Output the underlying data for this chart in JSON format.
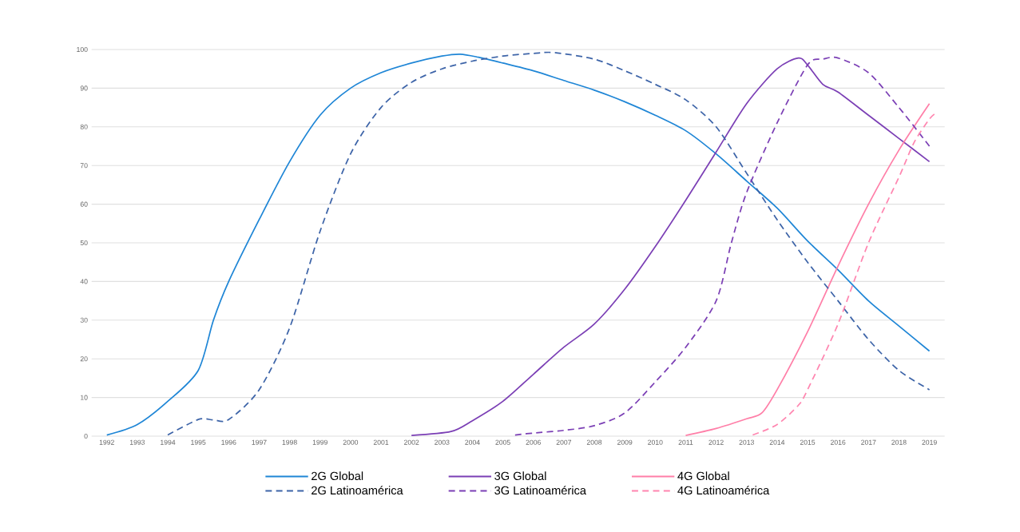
{
  "chart_data": {
    "type": "line",
    "xlim": [
      1991.5,
      2019.5
    ],
    "ylim": [
      0,
      100
    ],
    "xticks": [
      1992,
      1993,
      1994,
      1995,
      1996,
      1997,
      1998,
      1999,
      2000,
      2001,
      2002,
      2003,
      2004,
      2005,
      2006,
      2007,
      2008,
      2009,
      2010,
      2011,
      2012,
      2013,
      2014,
      2015,
      2016,
      2017,
      2018,
      2019
    ],
    "yticks": [
      0,
      10,
      20,
      30,
      40,
      50,
      60,
      70,
      80,
      90,
      100
    ],
    "grid": "y",
    "legend": "bottom",
    "marker": "none",
    "series": [
      {
        "name": "2G Global",
        "color": "#1f86d6",
        "line_style": "solid",
        "x": [
          1992,
          1993,
          1994,
          1995,
          1995.5,
          1996,
          1997,
          1998,
          1999,
          2000,
          2001,
          2002,
          2003,
          2003.6,
          2004.2,
          2005,
          2006,
          2007,
          2008,
          2009,
          2010,
          2011,
          2012,
          2013,
          2014,
          2015,
          2016,
          2017,
          2018,
          2019
        ],
        "values": [
          0.3,
          3,
          9,
          17,
          30,
          40,
          56,
          71,
          83,
          90,
          94,
          96.5,
          98.3,
          98.8,
          98,
          96.5,
          94.5,
          92,
          89.5,
          86.5,
          83,
          79,
          73,
          66,
          59,
          50.5,
          43,
          35,
          28.5,
          22
        ]
      },
      {
        "name": "3G Global",
        "color": "#7b3fb5",
        "line_style": "solid",
        "x": [
          2002,
          2003.3,
          2004,
          2005,
          2006,
          2007,
          2008,
          2009,
          2010,
          2011,
          2012,
          2013,
          2014,
          2014.7,
          2015,
          2015.5,
          2016,
          2017,
          2018,
          2019
        ],
        "values": [
          0.2,
          1.2,
          4,
          9,
          16,
          23,
          29,
          38,
          49,
          61,
          73.5,
          86,
          95,
          97.8,
          96,
          91,
          89,
          83,
          77,
          71
        ]
      },
      {
        "name": "4G Global",
        "color": "#ff7fa8",
        "line_style": "solid",
        "x": [
          2011,
          2012,
          2013,
          2013.5,
          2014,
          2015,
          2016,
          2017,
          2018,
          2019
        ],
        "values": [
          0.2,
          2,
          4.5,
          6,
          12,
          27,
          44,
          60,
          74,
          86
        ]
      },
      {
        "name": "2G Latinoamérica",
        "color": "#3d64a8",
        "line_style": "dashed",
        "x": [
          1994,
          1995,
          1995.5,
          1996,
          1997,
          1998,
          1999,
          2000,
          2001,
          2002,
          2003,
          2004,
          2005,
          2006,
          2006.7,
          2008,
          2009,
          2010,
          2011,
          2012,
          2013,
          2014,
          2015,
          2016,
          2017,
          2018,
          2019
        ],
        "values": [
          0.3,
          4.3,
          4.2,
          4.3,
          12,
          28,
          53,
          73,
          85,
          91.5,
          95,
          97,
          98.3,
          99,
          99.2,
          97.5,
          94.5,
          91,
          87,
          80,
          68,
          56,
          45,
          35,
          25,
          17,
          12
        ]
      },
      {
        "name": "3G Latinoamérica",
        "color": "#7b3fb5",
        "line_style": "dashed",
        "x": [
          2005.4,
          2006,
          2007,
          2008,
          2009,
          2010,
          2011,
          2012,
          2012.5,
          2013,
          2014,
          2015,
          2015.5,
          2016,
          2017,
          2018,
          2019
        ],
        "values": [
          0.3,
          0.8,
          1.5,
          2.7,
          6,
          14,
          23,
          35,
          50,
          63,
          81,
          96,
          97.5,
          97.8,
          94,
          85,
          75
        ]
      },
      {
        "name": "4G Latinoamérica",
        "color": "#ff86b0",
        "line_style": "dashed",
        "x": [
          2013.2,
          2014,
          2014.7,
          2015,
          2016,
          2017,
          2018,
          2018.5,
          2019,
          2019.2
        ],
        "values": [
          0.3,
          3,
          8,
          12,
          29,
          50,
          67,
          76,
          82,
          83.5
        ]
      }
    ]
  }
}
